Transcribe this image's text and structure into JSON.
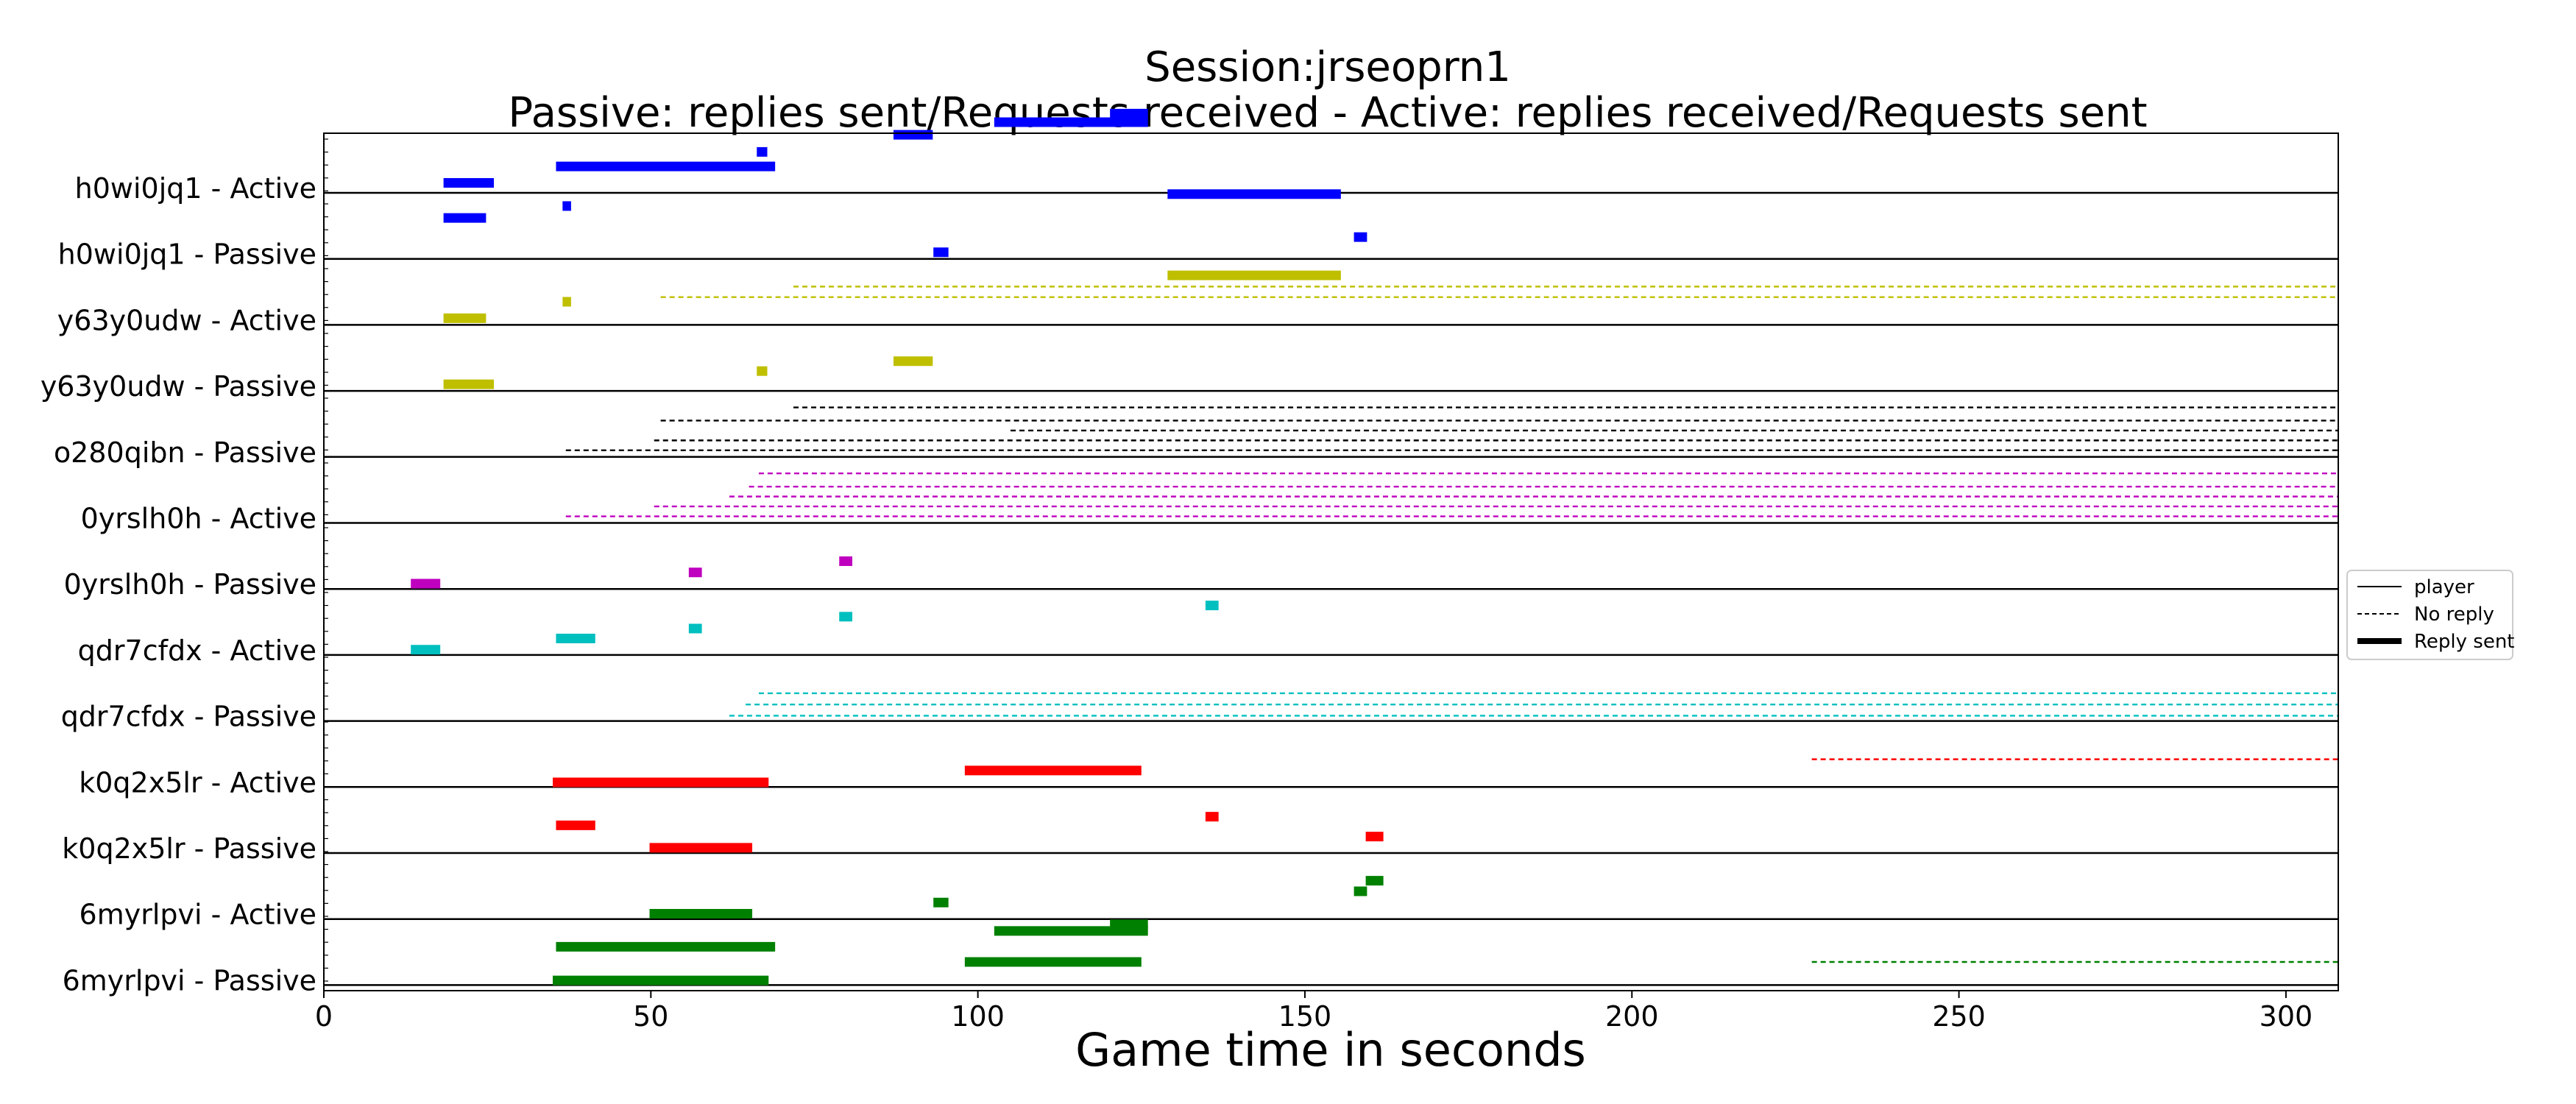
{
  "chart_data": {
    "type": "timeline",
    "title": "Session:jrseoprn1",
    "subtitle": "Passive: replies sent/Requests received - Active: replies received/Requests sent",
    "xlabel": "Game time in seconds",
    "xlim": [
      0,
      308
    ],
    "xticks": [
      0,
      50,
      100,
      150,
      200,
      250,
      300
    ],
    "grid": false,
    "legend": {
      "placement": "right",
      "entries": [
        {
          "label": "player",
          "style": "thin"
        },
        {
          "label": "No reply",
          "style": "dashed"
        },
        {
          "label": "Reply sent",
          "style": "thick"
        }
      ]
    },
    "rows": [
      {
        "label": "h0wi0jq1 - Active",
        "color": "#0000ff",
        "bars": [
          [
            18.3,
            26.0,
            0.15
          ],
          [
            35.5,
            69.0,
            0.4
          ],
          [
            66.2,
            67.8,
            0.62
          ],
          [
            87.1,
            93.1,
            0.88
          ],
          [
            102.5,
            126.0,
            1.07
          ],
          [
            120.2,
            126.0,
            1.2
          ]
        ],
        "dashed": []
      },
      {
        "label": "h0wi0jq1 - Passive",
        "color": "#0000ff",
        "bars": [
          [
            18.3,
            24.8,
            0.62
          ],
          [
            36.5,
            37.8,
            0.8
          ],
          [
            93.2,
            95.5,
            0.1
          ],
          [
            129.0,
            155.5,
            0.98
          ],
          [
            157.5,
            159.5,
            0.33
          ]
        ],
        "dashed": []
      },
      {
        "label": "y63y0udw - Active",
        "color": "#bfbf00",
        "bars": [
          [
            18.3,
            24.8,
            0.1
          ],
          [
            36.5,
            37.8,
            0.35
          ]
        ],
        "dashed": [
          [
            51.5,
            308,
            0.42
          ],
          [
            71.8,
            308,
            0.58
          ]
        ]
      },
      {
        "label": "y63y0udw - Passive",
        "color": "#bfbf00",
        "bars": [
          [
            18.3,
            26.0,
            0.1
          ],
          [
            66.2,
            67.8,
            0.3
          ],
          [
            87.1,
            93.1,
            0.45
          ],
          [
            129.0,
            155.5,
            1.75
          ]
        ],
        "dashed": []
      },
      {
        "label": "o280qibn - Passive",
        "color": "#000000",
        "bars": [],
        "dashed": [
          [
            37.0,
            308,
            0.1
          ],
          [
            50.5,
            308,
            0.25
          ],
          [
            105.0,
            308,
            0.4
          ],
          [
            51.5,
            308,
            0.55
          ],
          [
            71.8,
            308,
            0.75
          ]
        ]
      },
      {
        "label": "0yrslh0h - Active",
        "color": "#bf00bf",
        "bars": [],
        "dashed": [
          [
            37.0,
            308,
            0.1
          ],
          [
            50.5,
            308,
            0.25
          ],
          [
            62.0,
            308,
            0.4
          ],
          [
            65.0,
            308,
            0.55
          ],
          [
            66.5,
            308,
            0.75
          ]
        ]
      },
      {
        "label": "0yrslh0h - Passive",
        "color": "#bf00bf",
        "bars": [
          [
            13.3,
            17.8,
            0.08
          ],
          [
            55.8,
            57.8,
            0.25
          ],
          [
            78.8,
            80.8,
            0.42
          ]
        ],
        "dashed": []
      },
      {
        "label": "qdr7cfdx - Active",
        "color": "#00bfbf",
        "bars": [
          [
            13.3,
            17.8,
            0.08
          ],
          [
            35.5,
            41.5,
            0.25
          ],
          [
            55.8,
            57.8,
            0.4
          ],
          [
            78.8,
            80.8,
            0.58
          ],
          [
            134.8,
            136.8,
            0.75
          ]
        ],
        "dashed": []
      },
      {
        "label": "qdr7cfdx - Passive",
        "color": "#00bfbf",
        "bars": [],
        "dashed": [
          [
            62.0,
            308,
            0.08
          ],
          [
            64.5,
            308,
            0.25
          ],
          [
            66.5,
            308,
            0.42
          ]
        ]
      },
      {
        "label": "k0q2x5lr - Active",
        "color": "#ff0000",
        "bars": [
          [
            35.0,
            68.0,
            0.07
          ],
          [
            98.0,
            125.0,
            0.25
          ]
        ],
        "dashed": [
          [
            227.5,
            308,
            0.42
          ]
        ]
      },
      {
        "label": "k0q2x5lr - Passive",
        "color": "#ff0000",
        "bars": [
          [
            35.5,
            41.5,
            0.42
          ],
          [
            49.8,
            65.5,
            0.08
          ],
          [
            134.8,
            136.8,
            0.55
          ],
          [
            159.3,
            162.0,
            0.25
          ]
        ],
        "dashed": []
      },
      {
        "label": "6myrlpvi - Active",
        "color": "#008000",
        "bars": [
          [
            49.8,
            65.5,
            0.08
          ],
          [
            93.2,
            95.5,
            0.25
          ],
          [
            157.5,
            159.5,
            0.42
          ],
          [
            159.3,
            162.0,
            0.58
          ]
        ],
        "dashed": []
      },
      {
        "label": "6myrlpvi - Passive",
        "color": "#008000",
        "bars": [
          [
            35.0,
            68.0,
            0.07
          ],
          [
            98.0,
            125.0,
            0.35
          ],
          [
            35.5,
            69.0,
            0.58
          ],
          [
            102.5,
            126.0,
            0.82
          ],
          [
            120.2,
            126.0,
            0.92
          ]
        ],
        "dashed": [
          [
            227.5,
            308,
            0.35
          ]
        ]
      }
    ]
  }
}
